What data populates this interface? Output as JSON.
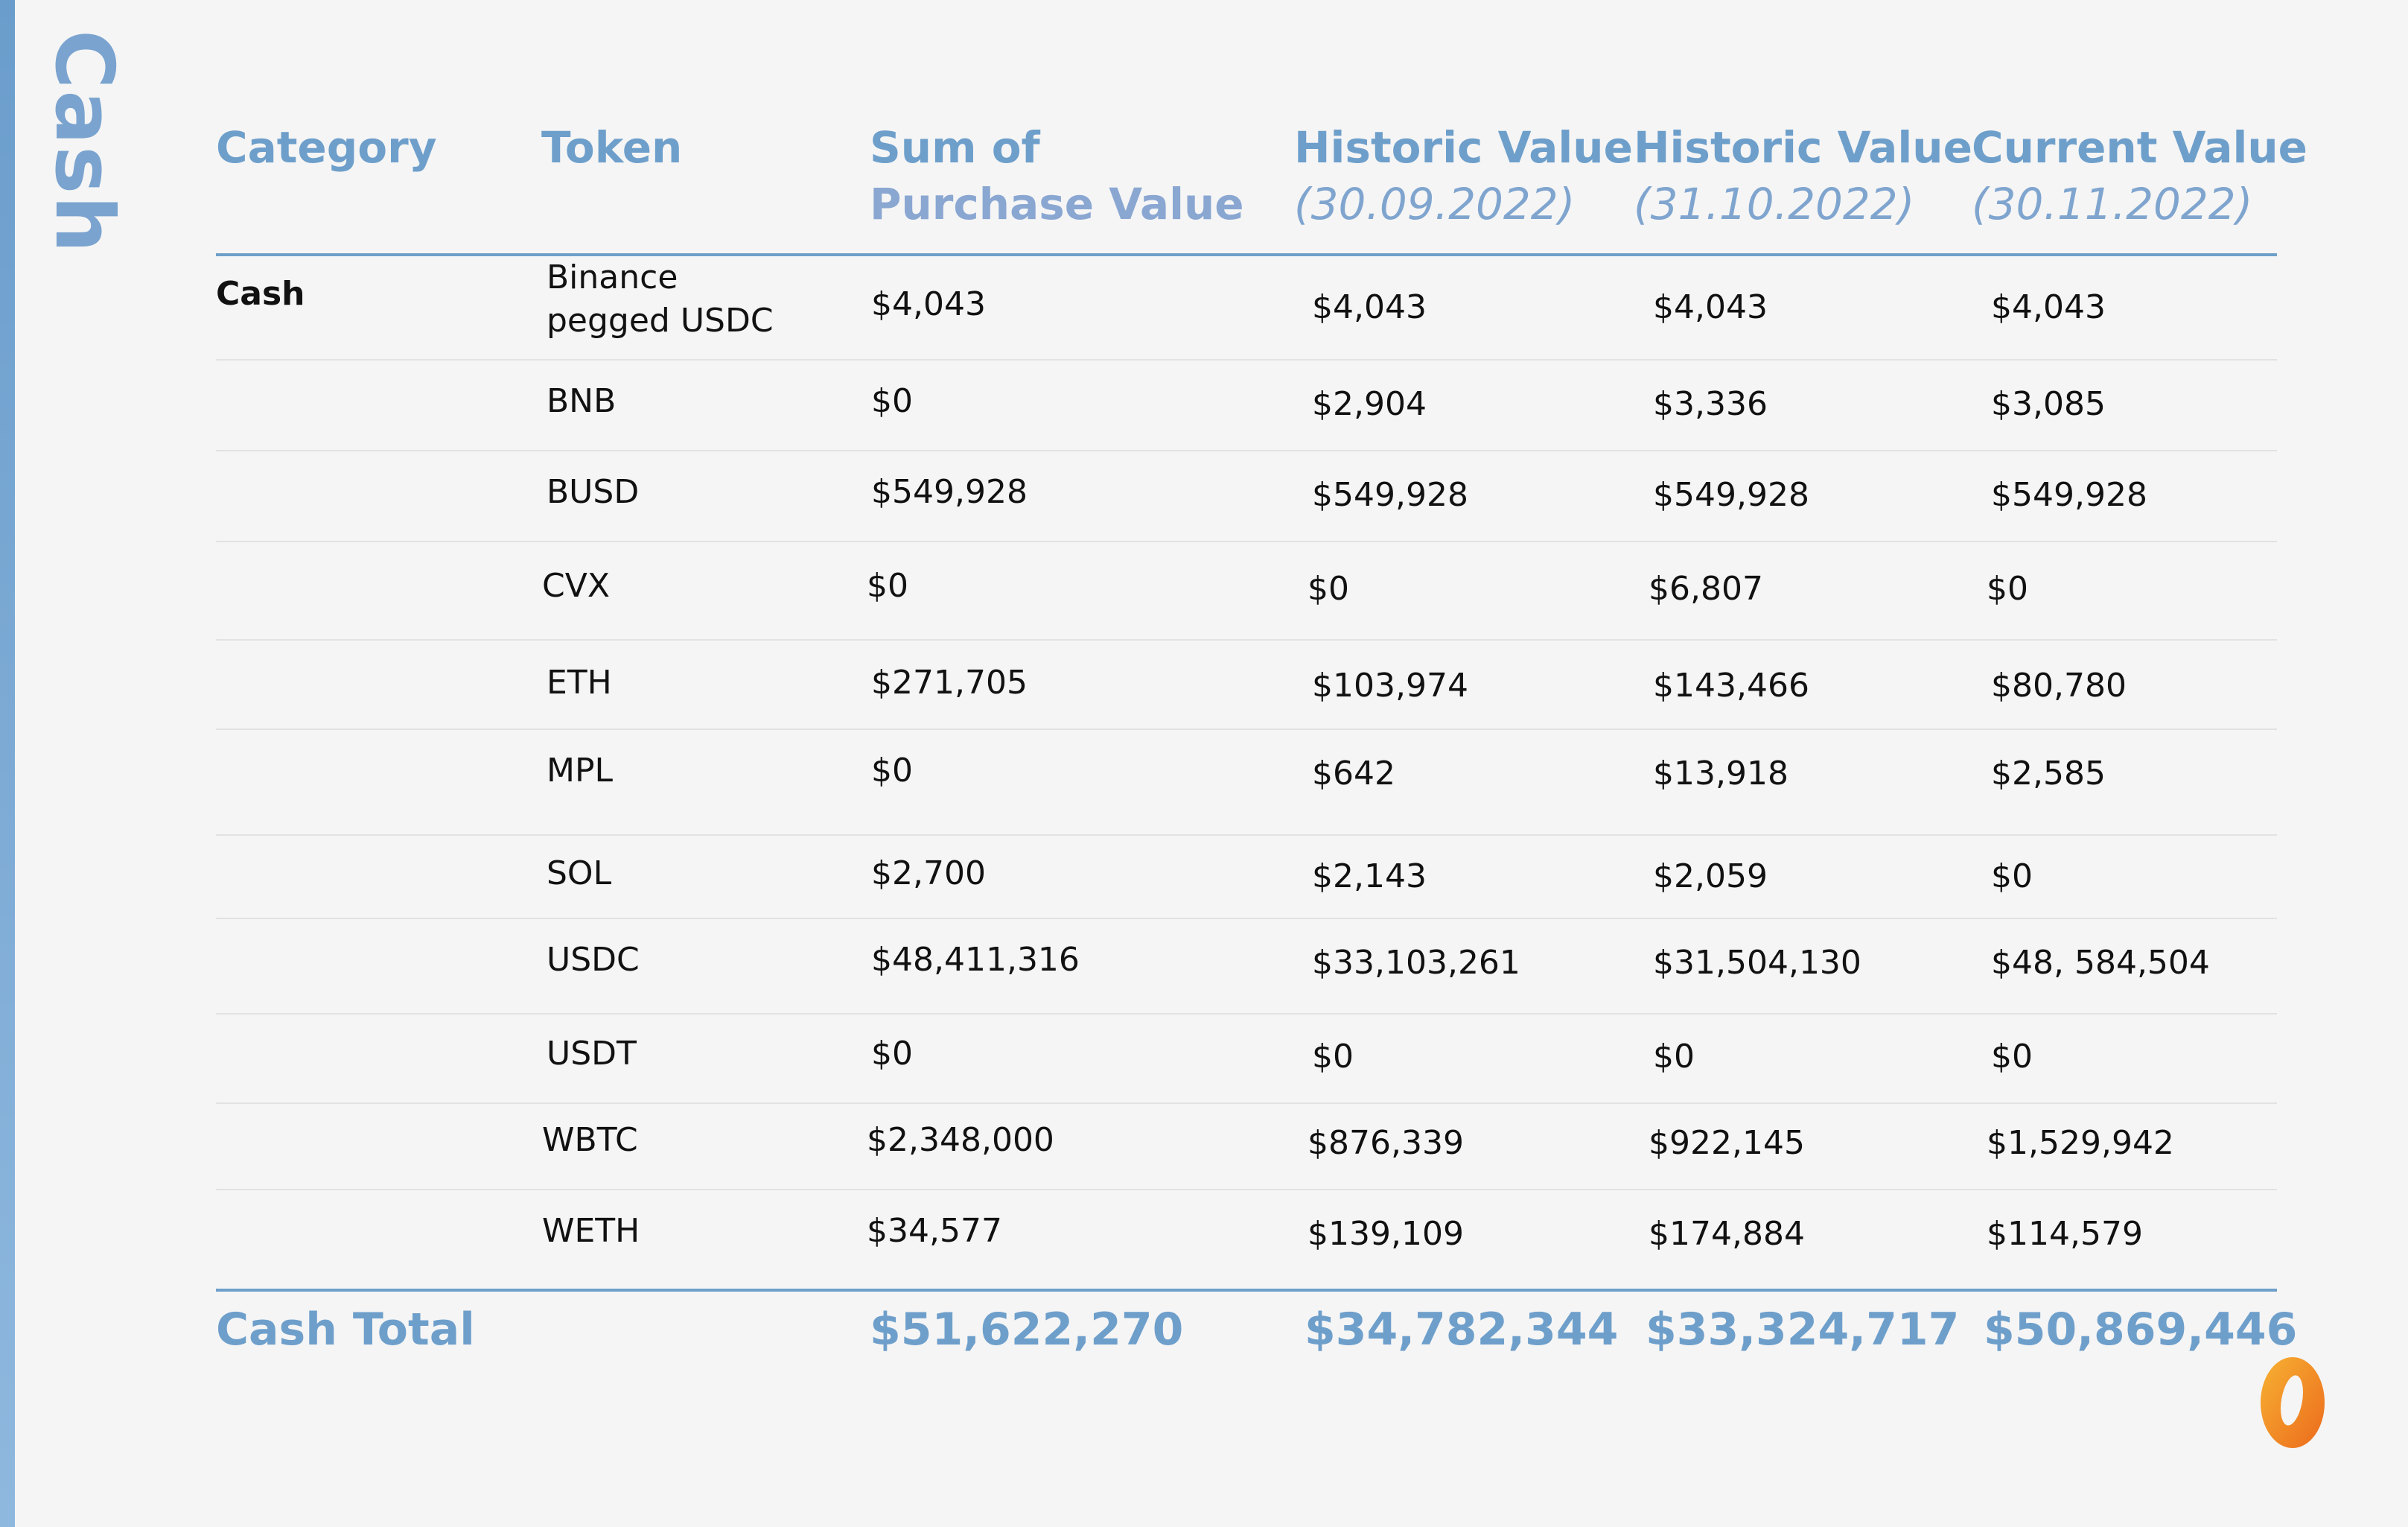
{
  "side_title": "Cash",
  "columns": {
    "category": "Category",
    "token": "Token",
    "purchase_line1": "Sum of",
    "purchase_line2": "Purchase Value",
    "hist1_label": "Historic Value",
    "hist1_date": "(30.09.2022)",
    "hist2_label": "Historic Value",
    "hist2_date": "(31.10.2022)",
    "current_label": "Current Value",
    "current_date": "(30.11.2022)"
  },
  "rows": [
    {
      "category": "Cash",
      "token_line1": "Binance",
      "token_line2": "pegged USDC",
      "purchase": "$4,043",
      "hist1": "$4,043",
      "hist2": "$4,043",
      "current": "$4,043"
    },
    {
      "category": "",
      "token_line1": "BNB",
      "token_line2": "",
      "purchase": "$0",
      "hist1": "$2,904",
      "hist2": "$3,336",
      "current": "$3,085"
    },
    {
      "category": "",
      "token_line1": "BUSD",
      "token_line2": "",
      "purchase": "$549,928",
      "hist1": "$549,928",
      "hist2": "$549,928",
      "current": "$549,928"
    },
    {
      "category": "",
      "token_line1": "CVX",
      "token_line2": "",
      "purchase": "$0",
      "hist1": "$0",
      "hist2": "$6,807",
      "current": "$0"
    },
    {
      "category": "",
      "token_line1": "ETH",
      "token_line2": "",
      "purchase": "$271,705",
      "hist1": "$103,974",
      "hist2": "$143,466",
      "current": "$80,780"
    },
    {
      "category": "",
      "token_line1": "MPL",
      "token_line2": "",
      "purchase": "$0",
      "hist1": "$642",
      "hist2": "$13,918",
      "current": "$2,585"
    },
    {
      "category": "",
      "token_line1": "SOL",
      "token_line2": "",
      "purchase": "$2,700",
      "hist1": "$2,143",
      "hist2": "$2,059",
      "current": "$0"
    },
    {
      "category": "",
      "token_line1": "USDC",
      "token_line2": "",
      "purchase": "$48,411,316",
      "hist1": "$33,103,261",
      "hist2": "$31,504,130",
      "current": "$48, 584,504"
    },
    {
      "category": "",
      "token_line1": "USDT",
      "token_line2": "",
      "purchase": "$0",
      "hist1": "$0",
      "hist2": "$0",
      "current": "$0"
    },
    {
      "category": "",
      "token_line1": "WBTC",
      "token_line2": "",
      "purchase": "$2,348,000",
      "hist1": "$876,339",
      "hist2": "$922,145",
      "current": "$1,529,942"
    },
    {
      "category": "",
      "token_line1": "WETH",
      "token_line2": "",
      "purchase": "$34,577",
      "hist1": "$139,109",
      "hist2": "$174,884",
      "current": "$114,579"
    }
  ],
  "total": {
    "label": "Cash Total",
    "purchase": "$51,622,270",
    "hist1": "$34,782,344",
    "hist2": "$33,324,717",
    "current": "$50,869,446"
  },
  "colors": {
    "accent": "#6e9fcb",
    "logo_orange": "#f08a24"
  }
}
